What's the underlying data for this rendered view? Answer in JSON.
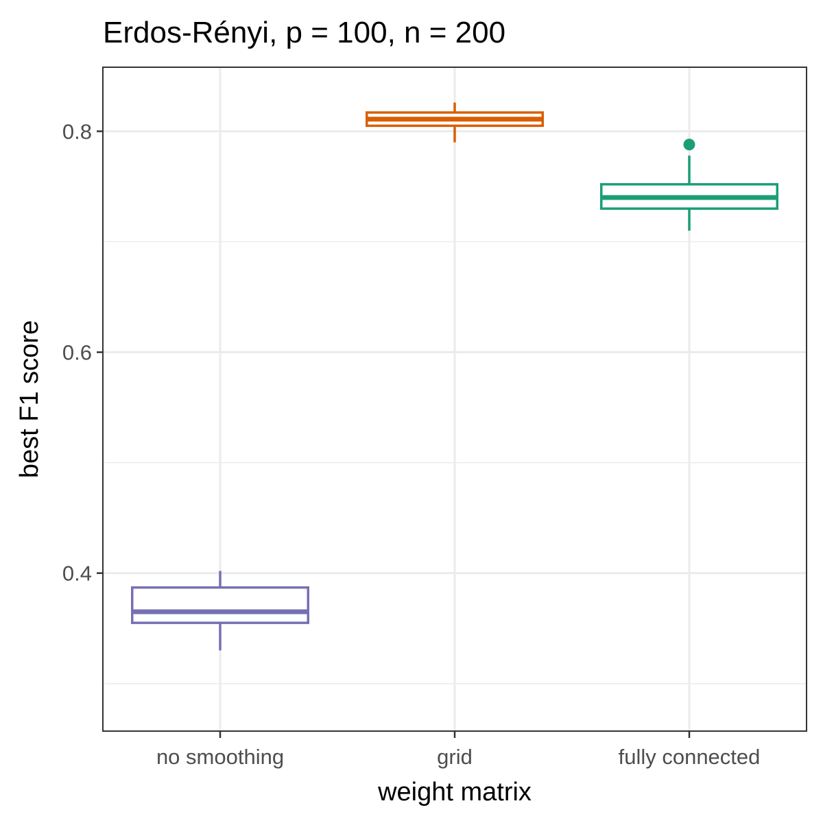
{
  "chart_data": {
    "type": "boxplot",
    "title": "Erdos-Rényi, p = 100, n = 200",
    "xlabel": "weight matrix",
    "ylabel": "best F1 score",
    "ylim": [
      0.257,
      0.858
    ],
    "y_ticks": [
      0.4,
      0.6,
      0.8
    ],
    "y_minor_ticks": [
      0.3,
      0.5,
      0.7
    ],
    "grid": true,
    "categories": [
      "no smoothing",
      "grid",
      "fully connected"
    ],
    "boxes": [
      {
        "category": "no smoothing",
        "min": 0.33,
        "q1": 0.355,
        "median": 0.365,
        "q3": 0.387,
        "max": 0.402,
        "outliers": [],
        "color": "#7570B3"
      },
      {
        "category": "grid",
        "min": 0.79,
        "q1": 0.805,
        "median": 0.811,
        "q3": 0.817,
        "max": 0.826,
        "outliers": [],
        "color": "#D95F02"
      },
      {
        "category": "fully connected",
        "min": 0.71,
        "q1": 0.73,
        "median": 0.74,
        "q3": 0.752,
        "max": 0.778,
        "outliers": [
          0.788
        ],
        "color": "#1B9E77"
      }
    ]
  }
}
